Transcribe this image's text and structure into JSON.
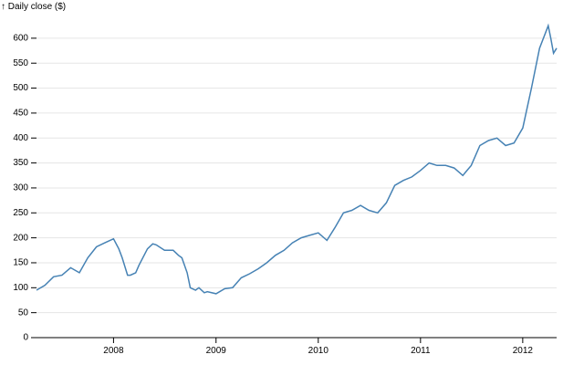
{
  "chart_data": {
    "type": "line",
    "title": "",
    "ylabel": "↑ Daily close ($)",
    "xlabel": "",
    "x_unit": "date",
    "xlim": [
      "2007-04-01",
      "2012-05-01"
    ],
    "ylim": [
      0,
      640
    ],
    "grid": {
      "horizontal": true,
      "vertical": false
    },
    "line_color": "#4682b4",
    "y_ticks": [
      0,
      50,
      100,
      150,
      200,
      250,
      300,
      350,
      400,
      450,
      500,
      550,
      600
    ],
    "x_ticks": [
      {
        "date": "2008-01-01",
        "label": "2008"
      },
      {
        "date": "2009-01-01",
        "label": "2009"
      },
      {
        "date": "2010-01-01",
        "label": "2010"
      },
      {
        "date": "2011-01-01",
        "label": "2011"
      },
      {
        "date": "2012-01-01",
        "label": "2012"
      }
    ],
    "series": [
      {
        "points": [
          [
            "2007-04-01",
            95
          ],
          [
            "2007-05-01",
            105
          ],
          [
            "2007-06-01",
            122
          ],
          [
            "2007-07-01",
            125
          ],
          [
            "2007-08-01",
            140
          ],
          [
            "2007-09-01",
            130
          ],
          [
            "2007-10-01",
            160
          ],
          [
            "2007-11-01",
            182
          ],
          [
            "2007-12-01",
            190
          ],
          [
            "2008-01-01",
            198
          ],
          [
            "2008-01-20",
            178
          ],
          [
            "2008-02-01",
            160
          ],
          [
            "2008-02-20",
            125
          ],
          [
            "2008-03-01",
            125
          ],
          [
            "2008-03-20",
            130
          ],
          [
            "2008-04-01",
            145
          ],
          [
            "2008-05-01",
            178
          ],
          [
            "2008-05-20",
            188
          ],
          [
            "2008-06-01",
            186
          ],
          [
            "2008-07-01",
            175
          ],
          [
            "2008-08-01",
            175
          ],
          [
            "2008-08-20",
            165
          ],
          [
            "2008-09-01",
            160
          ],
          [
            "2008-09-20",
            130
          ],
          [
            "2008-10-01",
            100
          ],
          [
            "2008-10-20",
            95
          ],
          [
            "2008-11-01",
            100
          ],
          [
            "2008-11-20",
            90
          ],
          [
            "2008-12-01",
            92
          ],
          [
            "2009-01-01",
            88
          ],
          [
            "2009-02-01",
            98
          ],
          [
            "2009-03-01",
            100
          ],
          [
            "2009-04-01",
            120
          ],
          [
            "2009-05-01",
            128
          ],
          [
            "2009-06-01",
            138
          ],
          [
            "2009-07-01",
            150
          ],
          [
            "2009-08-01",
            165
          ],
          [
            "2009-09-01",
            175
          ],
          [
            "2009-10-01",
            190
          ],
          [
            "2009-11-01",
            200
          ],
          [
            "2009-12-01",
            205
          ],
          [
            "2010-01-01",
            210
          ],
          [
            "2010-02-01",
            195
          ],
          [
            "2010-03-01",
            220
          ],
          [
            "2010-04-01",
            250
          ],
          [
            "2010-05-01",
            255
          ],
          [
            "2010-06-01",
            265
          ],
          [
            "2010-07-01",
            255
          ],
          [
            "2010-08-01",
            250
          ],
          [
            "2010-09-01",
            270
          ],
          [
            "2010-10-01",
            305
          ],
          [
            "2010-11-01",
            315
          ],
          [
            "2010-12-01",
            322
          ],
          [
            "2011-01-01",
            335
          ],
          [
            "2011-02-01",
            350
          ],
          [
            "2011-03-01",
            345
          ],
          [
            "2011-04-01",
            345
          ],
          [
            "2011-05-01",
            340
          ],
          [
            "2011-06-01",
            325
          ],
          [
            "2011-07-01",
            345
          ],
          [
            "2011-08-01",
            385
          ],
          [
            "2011-09-01",
            395
          ],
          [
            "2011-10-01",
            400
          ],
          [
            "2011-11-01",
            385
          ],
          [
            "2011-12-01",
            390
          ],
          [
            "2012-01-01",
            420
          ],
          [
            "2012-02-01",
            500
          ],
          [
            "2012-03-01",
            580
          ],
          [
            "2012-04-01",
            625
          ],
          [
            "2012-04-10",
            600
          ],
          [
            "2012-04-20",
            570
          ],
          [
            "2012-05-01",
            580
          ]
        ]
      }
    ]
  }
}
